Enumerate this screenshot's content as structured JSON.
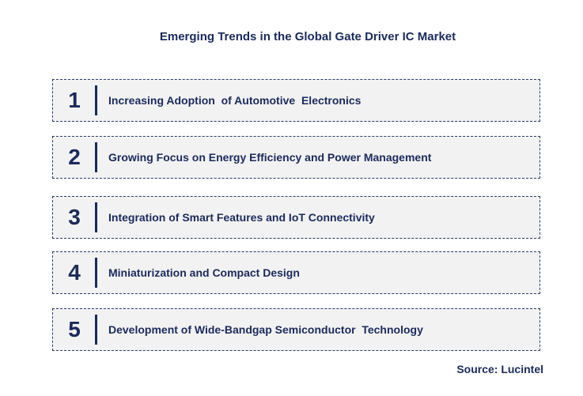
{
  "title": "Emerging Trends in the Global Gate Driver IC Market",
  "items": [
    {
      "number": "1",
      "text": "Increasing Adoption  of Automotive  Electronics"
    },
    {
      "number": "2",
      "text": "Growing Focus on Energy Efficiency and Power Management"
    },
    {
      "number": "3",
      "text": "Integration of Smart Features and IoT Connectivity"
    },
    {
      "number": "4",
      "text": "Miniaturization and Compact Design"
    },
    {
      "number": "5",
      "text": "Development of Wide-Bandgap Semiconductor  Technology"
    }
  ],
  "source": "Source: Lucintel"
}
